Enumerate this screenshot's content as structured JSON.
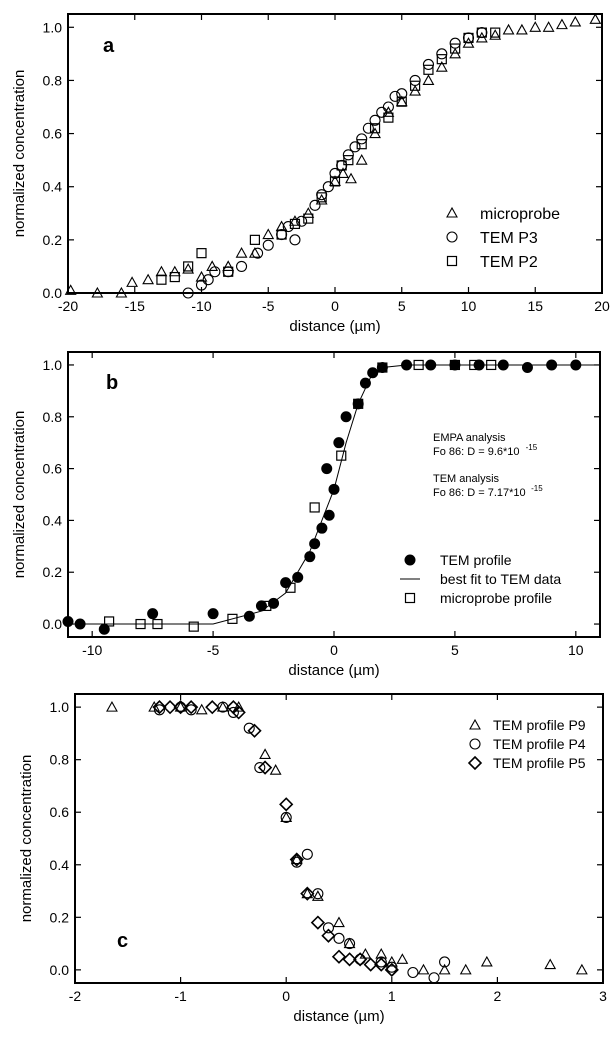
{
  "chart_data": [
    {
      "type": "scatter",
      "panel_label": "a",
      "xlabel": "distance (µm)",
      "ylabel": "normalized concentration",
      "xlim": [
        -20,
        20
      ],
      "ylim": [
        0,
        1.05
      ],
      "xticks": [
        -20,
        -15,
        -10,
        -5,
        0,
        5,
        10,
        15,
        20
      ],
      "xtick_labels": [
        "-20",
        "-15",
        "-10",
        "-5",
        "0",
        "5",
        "10",
        "15",
        "20"
      ],
      "yticks": [
        0,
        0.2,
        0.4,
        0.6,
        0.8,
        1.0
      ],
      "ytick_labels": [
        "0.0",
        "0.2",
        "0.4",
        "0.6",
        "0.8",
        "1.0"
      ],
      "legend_position": "bottom-right",
      "series": [
        {
          "name": "microprobe",
          "marker": "triangle",
          "points": [
            [
              -19.8,
              0.01
            ],
            [
              -17.8,
              0.0
            ],
            [
              -16.0,
              0.0
            ],
            [
              -15.2,
              0.04
            ],
            [
              -14.0,
              0.05
            ],
            [
              -13.0,
              0.08
            ],
            [
              -12.0,
              0.08
            ],
            [
              -11.0,
              0.09
            ],
            [
              -10.0,
              0.06
            ],
            [
              -9.2,
              0.1
            ],
            [
              -8.0,
              0.1
            ],
            [
              -7.0,
              0.15
            ],
            [
              -6.0,
              0.15
            ],
            [
              -5.0,
              0.22
            ],
            [
              -4.0,
              0.25
            ],
            [
              -3.0,
              0.27
            ],
            [
              -2.0,
              0.3
            ],
            [
              -1.0,
              0.35
            ],
            [
              0.0,
              0.42
            ],
            [
              0.6,
              0.45
            ],
            [
              1.2,
              0.43
            ],
            [
              2.0,
              0.5
            ],
            [
              3.0,
              0.6
            ],
            [
              4.0,
              0.68
            ],
            [
              5.0,
              0.72
            ],
            [
              6.0,
              0.76
            ],
            [
              7.0,
              0.8
            ],
            [
              8.0,
              0.85
            ],
            [
              9.0,
              0.9
            ],
            [
              10.0,
              0.94
            ],
            [
              11.0,
              0.96
            ],
            [
              12.0,
              0.97
            ],
            [
              13.0,
              0.99
            ],
            [
              14.0,
              0.99
            ],
            [
              15.0,
              1.0
            ],
            [
              16.0,
              1.0
            ],
            [
              17.0,
              1.01
            ],
            [
              18.0,
              1.02
            ],
            [
              19.5,
              1.03
            ]
          ]
        },
        {
          "name": "TEM P3",
          "marker": "circle",
          "points": [
            [
              -11.0,
              0.0
            ],
            [
              -10.0,
              0.03
            ],
            [
              -9.5,
              0.05
            ],
            [
              -9.0,
              0.08
            ],
            [
              -8.0,
              0.08
            ],
            [
              -7.0,
              0.1
            ],
            [
              -5.8,
              0.15
            ],
            [
              -5.0,
              0.18
            ],
            [
              -4.0,
              0.22
            ],
            [
              -3.5,
              0.25
            ],
            [
              -3.0,
              0.2
            ],
            [
              -2.5,
              0.27
            ],
            [
              -1.5,
              0.33
            ],
            [
              -1.0,
              0.37
            ],
            [
              -0.5,
              0.4
            ],
            [
              0.0,
              0.45
            ],
            [
              0.5,
              0.48
            ],
            [
              1.0,
              0.52
            ],
            [
              1.5,
              0.55
            ],
            [
              2.0,
              0.58
            ],
            [
              2.5,
              0.62
            ],
            [
              3.0,
              0.65
            ],
            [
              3.5,
              0.68
            ],
            [
              4.0,
              0.7
            ],
            [
              4.5,
              0.74
            ],
            [
              5.0,
              0.75
            ],
            [
              6.0,
              0.8
            ],
            [
              7.0,
              0.86
            ],
            [
              8.0,
              0.9
            ],
            [
              9.0,
              0.94
            ],
            [
              10.0,
              0.96
            ],
            [
              11.0,
              0.98
            ]
          ]
        },
        {
          "name": "TEM P2",
          "marker": "square",
          "points": [
            [
              -13.0,
              0.05
            ],
            [
              -12.0,
              0.06
            ],
            [
              -11.0,
              0.1
            ],
            [
              -10.0,
              0.15
            ],
            [
              -8.0,
              0.08
            ],
            [
              -6.0,
              0.2
            ],
            [
              -4.0,
              0.22
            ],
            [
              -3.0,
              0.26
            ],
            [
              -2.0,
              0.28
            ],
            [
              -1.0,
              0.36
            ],
            [
              0.0,
              0.42
            ],
            [
              0.5,
              0.48
            ],
            [
              1.0,
              0.5
            ],
            [
              2.0,
              0.56
            ],
            [
              3.0,
              0.62
            ],
            [
              4.0,
              0.66
            ],
            [
              5.0,
              0.72
            ],
            [
              6.0,
              0.78
            ],
            [
              7.0,
              0.84
            ],
            [
              8.0,
              0.88
            ],
            [
              9.0,
              0.92
            ],
            [
              10.0,
              0.96
            ],
            [
              11.0,
              0.98
            ],
            [
              12.0,
              0.98
            ]
          ]
        }
      ]
    },
    {
      "type": "scatter",
      "panel_label": "b",
      "xlabel": "distance (µm)",
      "ylabel": "normalized concentration",
      "xlim": [
        -11,
        11
      ],
      "ylim": [
        -0.05,
        1.05
      ],
      "xticks": [
        -10,
        -5,
        0,
        5,
        10
      ],
      "xtick_labels": [
        "-10",
        "-5",
        "0",
        "5",
        "10"
      ],
      "yticks": [
        0,
        0.2,
        0.4,
        0.6,
        0.8,
        1.0
      ],
      "ytick_labels": [
        "0.0",
        "0.2",
        "0.4",
        "0.6",
        "0.8",
        "1.0"
      ],
      "legend_position": "bottom-right",
      "annotations": [
        {
          "line1": "EMPA analysis",
          "line2_prefix": "Fo 86: D = 9.6*10",
          "line2_exp": "-15"
        },
        {
          "line1": "TEM analysis",
          "line2_prefix": "Fo 86: D = 7.17*10",
          "line2_exp": "-15"
        }
      ],
      "series": [
        {
          "name": "TEM profile",
          "marker": "filled-circle",
          "points": [
            [
              -11.0,
              0.01
            ],
            [
              -10.5,
              0.0
            ],
            [
              -9.5,
              -0.02
            ],
            [
              -7.5,
              0.04
            ],
            [
              -5.0,
              0.04
            ],
            [
              -3.5,
              0.03
            ],
            [
              -3.0,
              0.07
            ],
            [
              -2.5,
              0.08
            ],
            [
              -2.0,
              0.16
            ],
            [
              -1.5,
              0.18
            ],
            [
              -1.0,
              0.26
            ],
            [
              -0.8,
              0.31
            ],
            [
              -0.5,
              0.37
            ],
            [
              -0.2,
              0.42
            ],
            [
              0.0,
              0.52
            ],
            [
              -0.3,
              0.6
            ],
            [
              0.2,
              0.7
            ],
            [
              0.5,
              0.8
            ],
            [
              1.0,
              0.85
            ],
            [
              1.3,
              0.93
            ],
            [
              1.6,
              0.97
            ],
            [
              2.0,
              0.99
            ],
            [
              3.0,
              1.0
            ],
            [
              4.0,
              1.0
            ],
            [
              5.0,
              1.0
            ],
            [
              6.0,
              1.0
            ],
            [
              7.0,
              1.0
            ],
            [
              8.0,
              0.99
            ],
            [
              9.0,
              1.0
            ],
            [
              10.0,
              1.0
            ]
          ]
        },
        {
          "name": "best fit to TEM data",
          "marker": "line",
          "points": [
            [
              -11,
              0.0
            ],
            [
              -5,
              0.0
            ],
            [
              -3,
              0.05
            ],
            [
              -2,
              0.12
            ],
            [
              -1,
              0.28
            ],
            [
              0,
              0.52
            ],
            [
              0.5,
              0.7
            ],
            [
              1,
              0.85
            ],
            [
              1.5,
              0.95
            ],
            [
              2,
              0.99
            ],
            [
              3,
              1.0
            ],
            [
              11,
              1.0
            ]
          ]
        },
        {
          "name": "microprobe profile",
          "marker": "square",
          "points": [
            [
              -9.3,
              0.01
            ],
            [
              -8.0,
              0.0
            ],
            [
              -7.3,
              0.0
            ],
            [
              -5.8,
              -0.01
            ],
            [
              -4.2,
              0.02
            ],
            [
              -2.8,
              0.07
            ],
            [
              -1.8,
              0.14
            ],
            [
              -0.8,
              0.45
            ],
            [
              0.3,
              0.65
            ],
            [
              1.0,
              0.85
            ],
            [
              2.0,
              0.99
            ],
            [
              3.5,
              1.0
            ],
            [
              5.0,
              1.0
            ],
            [
              5.8,
              1.0
            ],
            [
              6.5,
              1.0
            ]
          ]
        }
      ]
    },
    {
      "type": "scatter",
      "panel_label": "c",
      "xlabel": "distance (µm)",
      "ylabel": "normalized concentration",
      "xlim": [
        -2,
        3
      ],
      "ylim": [
        -0.05,
        1.05
      ],
      "xticks": [
        -2,
        -1,
        0,
        1,
        2,
        3
      ],
      "xtick_labels": [
        "-2",
        "-1",
        "0",
        "1",
        "2",
        "3"
      ],
      "yticks": [
        0,
        0.2,
        0.4,
        0.6,
        0.8,
        1.0
      ],
      "ytick_labels": [
        "0.0",
        "0.2",
        "0.4",
        "0.6",
        "0.8",
        "1.0"
      ],
      "legend_position": "top-right",
      "series": [
        {
          "name": "TEM profile P9",
          "marker": "triangle",
          "points": [
            [
              -1.65,
              1.0
            ],
            [
              -1.25,
              1.0
            ],
            [
              -1.0,
              1.0
            ],
            [
              -0.8,
              0.99
            ],
            [
              -0.6,
              1.0
            ],
            [
              -0.45,
              1.0
            ],
            [
              -0.2,
              0.82
            ],
            [
              -0.1,
              0.76
            ],
            [
              0.0,
              0.58
            ],
            [
              0.1,
              0.42
            ],
            [
              0.2,
              0.29
            ],
            [
              0.3,
              0.28
            ],
            [
              0.5,
              0.18
            ],
            [
              0.6,
              0.1
            ],
            [
              0.75,
              0.06
            ],
            [
              0.9,
              0.06
            ],
            [
              1.0,
              0.03
            ],
            [
              1.1,
              0.04
            ],
            [
              1.3,
              0.0
            ],
            [
              1.5,
              0.0
            ],
            [
              1.7,
              0.0
            ],
            [
              1.9,
              0.03
            ],
            [
              2.5,
              0.02
            ],
            [
              2.8,
              0.0
            ]
          ]
        },
        {
          "name": "TEM profile P4",
          "marker": "circle",
          "points": [
            [
              -1.2,
              0.99
            ],
            [
              -1.0,
              1.0
            ],
            [
              -0.9,
              0.99
            ],
            [
              -0.6,
              1.0
            ],
            [
              -0.5,
              0.98
            ],
            [
              -0.35,
              0.92
            ],
            [
              -0.25,
              0.77
            ],
            [
              0.0,
              0.58
            ],
            [
              0.1,
              0.41
            ],
            [
              0.2,
              0.44
            ],
            [
              0.3,
              0.29
            ],
            [
              0.4,
              0.16
            ],
            [
              0.5,
              0.12
            ],
            [
              0.6,
              0.1
            ],
            [
              0.7,
              0.04
            ],
            [
              0.9,
              0.03
            ],
            [
              1.0,
              0.01
            ],
            [
              1.2,
              -0.01
            ],
            [
              1.4,
              -0.03
            ],
            [
              1.5,
              0.03
            ]
          ]
        },
        {
          "name": "TEM profile P5",
          "marker": "diamond",
          "points": [
            [
              -1.2,
              1.0
            ],
            [
              -1.1,
              1.0
            ],
            [
              -1.0,
              1.0
            ],
            [
              -0.9,
              1.0
            ],
            [
              -0.7,
              1.0
            ],
            [
              -0.5,
              1.0
            ],
            [
              -0.45,
              0.98
            ],
            [
              -0.3,
              0.91
            ],
            [
              -0.2,
              0.77
            ],
            [
              0.0,
              0.63
            ],
            [
              0.1,
              0.42
            ],
            [
              0.2,
              0.29
            ],
            [
              0.3,
              0.18
            ],
            [
              0.4,
              0.13
            ],
            [
              0.5,
              0.05
            ],
            [
              0.6,
              0.04
            ],
            [
              0.7,
              0.04
            ],
            [
              0.8,
              0.02
            ],
            [
              0.9,
              0.02
            ],
            [
              1.0,
              0.0
            ]
          ]
        }
      ]
    }
  ]
}
